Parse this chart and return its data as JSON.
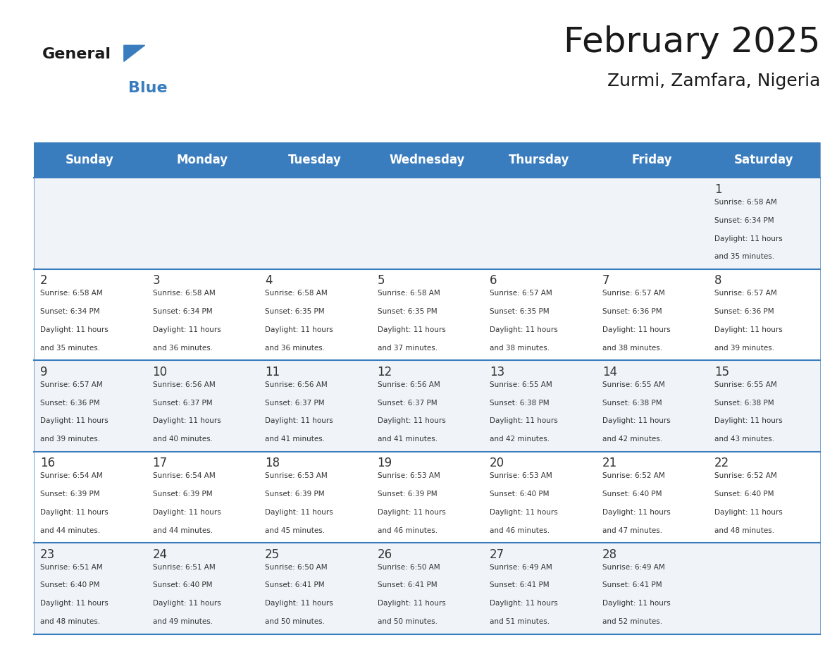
{
  "title": "February 2025",
  "subtitle": "Zurmi, Zamfara, Nigeria",
  "header_bg": "#3a7dbf",
  "header_text": "#ffffff",
  "days_of_week": [
    "Sunday",
    "Monday",
    "Tuesday",
    "Wednesday",
    "Thursday",
    "Friday",
    "Saturday"
  ],
  "cell_bg_even": "#f0f4f8",
  "cell_bg_odd": "#ffffff",
  "divider_color": "#3a7dbf",
  "day_number_color": "#333333",
  "info_text_color": "#333333",
  "calendar_data": [
    [
      null,
      null,
      null,
      null,
      null,
      null,
      {
        "day": 1,
        "sunrise": "6:58 AM",
        "sunset": "6:34 PM",
        "daylight": "11 hours and 35 minutes."
      }
    ],
    [
      {
        "day": 2,
        "sunrise": "6:58 AM",
        "sunset": "6:34 PM",
        "daylight": "11 hours and 35 minutes."
      },
      {
        "day": 3,
        "sunrise": "6:58 AM",
        "sunset": "6:34 PM",
        "daylight": "11 hours and 36 minutes."
      },
      {
        "day": 4,
        "sunrise": "6:58 AM",
        "sunset": "6:35 PM",
        "daylight": "11 hours and 36 minutes."
      },
      {
        "day": 5,
        "sunrise": "6:58 AM",
        "sunset": "6:35 PM",
        "daylight": "11 hours and 37 minutes."
      },
      {
        "day": 6,
        "sunrise": "6:57 AM",
        "sunset": "6:35 PM",
        "daylight": "11 hours and 38 minutes."
      },
      {
        "day": 7,
        "sunrise": "6:57 AM",
        "sunset": "6:36 PM",
        "daylight": "11 hours and 38 minutes."
      },
      {
        "day": 8,
        "sunrise": "6:57 AM",
        "sunset": "6:36 PM",
        "daylight": "11 hours and 39 minutes."
      }
    ],
    [
      {
        "day": 9,
        "sunrise": "6:57 AM",
        "sunset": "6:36 PM",
        "daylight": "11 hours and 39 minutes."
      },
      {
        "day": 10,
        "sunrise": "6:56 AM",
        "sunset": "6:37 PM",
        "daylight": "11 hours and 40 minutes."
      },
      {
        "day": 11,
        "sunrise": "6:56 AM",
        "sunset": "6:37 PM",
        "daylight": "11 hours and 41 minutes."
      },
      {
        "day": 12,
        "sunrise": "6:56 AM",
        "sunset": "6:37 PM",
        "daylight": "11 hours and 41 minutes."
      },
      {
        "day": 13,
        "sunrise": "6:55 AM",
        "sunset": "6:38 PM",
        "daylight": "11 hours and 42 minutes."
      },
      {
        "day": 14,
        "sunrise": "6:55 AM",
        "sunset": "6:38 PM",
        "daylight": "11 hours and 42 minutes."
      },
      {
        "day": 15,
        "sunrise": "6:55 AM",
        "sunset": "6:38 PM",
        "daylight": "11 hours and 43 minutes."
      }
    ],
    [
      {
        "day": 16,
        "sunrise": "6:54 AM",
        "sunset": "6:39 PM",
        "daylight": "11 hours and 44 minutes."
      },
      {
        "day": 17,
        "sunrise": "6:54 AM",
        "sunset": "6:39 PM",
        "daylight": "11 hours and 44 minutes."
      },
      {
        "day": 18,
        "sunrise": "6:53 AM",
        "sunset": "6:39 PM",
        "daylight": "11 hours and 45 minutes."
      },
      {
        "day": 19,
        "sunrise": "6:53 AM",
        "sunset": "6:39 PM",
        "daylight": "11 hours and 46 minutes."
      },
      {
        "day": 20,
        "sunrise": "6:53 AM",
        "sunset": "6:40 PM",
        "daylight": "11 hours and 46 minutes."
      },
      {
        "day": 21,
        "sunrise": "6:52 AM",
        "sunset": "6:40 PM",
        "daylight": "11 hours and 47 minutes."
      },
      {
        "day": 22,
        "sunrise": "6:52 AM",
        "sunset": "6:40 PM",
        "daylight": "11 hours and 48 minutes."
      }
    ],
    [
      {
        "day": 23,
        "sunrise": "6:51 AM",
        "sunset": "6:40 PM",
        "daylight": "11 hours and 48 minutes."
      },
      {
        "day": 24,
        "sunrise": "6:51 AM",
        "sunset": "6:40 PM",
        "daylight": "11 hours and 49 minutes."
      },
      {
        "day": 25,
        "sunrise": "6:50 AM",
        "sunset": "6:41 PM",
        "daylight": "11 hours and 50 minutes."
      },
      {
        "day": 26,
        "sunrise": "6:50 AM",
        "sunset": "6:41 PM",
        "daylight": "11 hours and 50 minutes."
      },
      {
        "day": 27,
        "sunrise": "6:49 AM",
        "sunset": "6:41 PM",
        "daylight": "11 hours and 51 minutes."
      },
      {
        "day": 28,
        "sunrise": "6:49 AM",
        "sunset": "6:41 PM",
        "daylight": "11 hours and 52 minutes."
      },
      null
    ]
  ],
  "logo_text_general": "General",
  "logo_text_blue": "Blue",
  "logo_color_general": "#1a1a1a",
  "logo_color_blue": "#3a7dbf",
  "logo_triangle_color": "#3a7dbf"
}
